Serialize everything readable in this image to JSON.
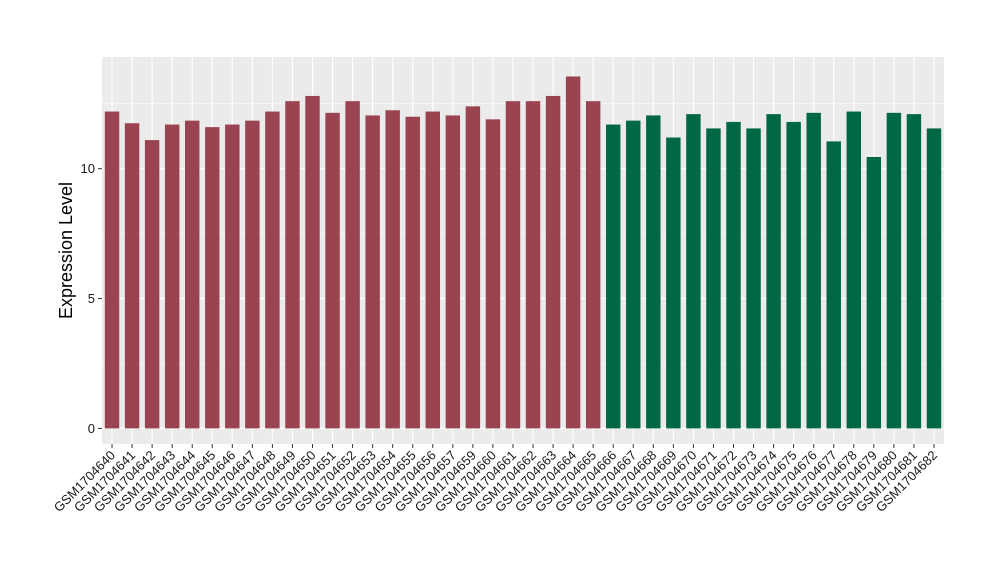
{
  "chart_data": {
    "type": "bar",
    "xlabel": "",
    "ylabel": "Expression Level",
    "ylim": [
      -0.6,
      14.3
    ],
    "yticks": [
      0,
      5,
      10
    ],
    "grid": true,
    "legend": "none",
    "colors": {
      "panel": "#ebebeb",
      "grid": "#ffffff",
      "group_a": "#9b4451",
      "group_b": "#006847"
    },
    "categories": [
      "GSM1704640",
      "GSM1704641",
      "GSM1704642",
      "GSM1704643",
      "GSM1704644",
      "GSM1704645",
      "GSM1704646",
      "GSM1704647",
      "GSM1704648",
      "GSM1704649",
      "GSM1704650",
      "GSM1704651",
      "GSM1704652",
      "GSM1704653",
      "GSM1704654",
      "GSM1704655",
      "GSM1704656",
      "GSM1704657",
      "GSM1704659",
      "GSM1704660",
      "GSM1704661",
      "GSM1704662",
      "GSM1704663",
      "GSM1704664",
      "GSM1704665",
      "GSM1704666",
      "GSM1704667",
      "GSM1704668",
      "GSM1704669",
      "GSM1704670",
      "GSM1704671",
      "GSM1704672",
      "GSM1704673",
      "GSM1704674",
      "GSM1704675",
      "GSM1704676",
      "GSM1704677",
      "GSM1704678",
      "GSM1704679",
      "GSM1704680",
      "GSM1704681",
      "GSM1704682"
    ],
    "values": [
      12.2,
      11.75,
      11.1,
      11.7,
      11.85,
      11.6,
      11.7,
      11.85,
      12.2,
      12.6,
      12.8,
      12.15,
      12.6,
      12.05,
      12.25,
      12.0,
      12.2,
      12.05,
      12.4,
      11.9,
      12.6,
      12.6,
      12.8,
      13.55,
      12.6,
      11.7,
      11.85,
      12.05,
      11.2,
      12.1,
      11.55,
      11.8,
      11.55,
      12.1,
      11.8,
      12.15,
      11.05,
      12.2,
      10.45,
      12.15,
      12.1,
      11.55
    ],
    "groups": [
      "a",
      "a",
      "a",
      "a",
      "a",
      "a",
      "a",
      "a",
      "a",
      "a",
      "a",
      "a",
      "a",
      "a",
      "a",
      "a",
      "a",
      "a",
      "a",
      "a",
      "a",
      "a",
      "a",
      "a",
      "a",
      "b",
      "b",
      "b",
      "b",
      "b",
      "b",
      "b",
      "b",
      "b",
      "b",
      "b",
      "b",
      "b",
      "b",
      "b",
      "b",
      "b"
    ]
  }
}
